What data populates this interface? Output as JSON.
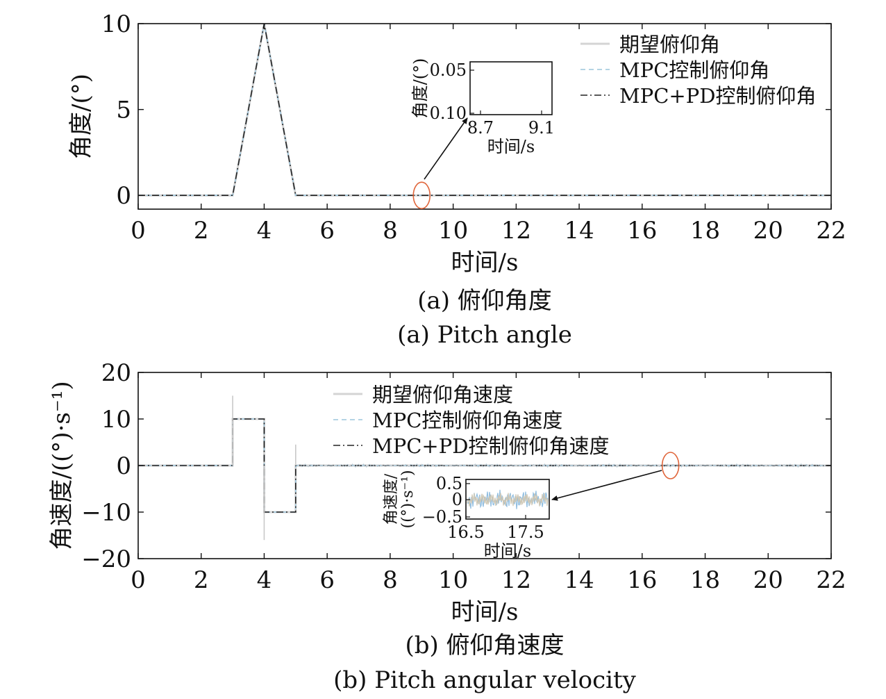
{
  "chart_data": [
    {
      "type": "line",
      "caption_zh": "(a) 俯仰角度",
      "caption_en": "(a) Pitch angle",
      "xlabel": "时间/s",
      "ylabel": "角度/(°)",
      "xlim": [
        0,
        22
      ],
      "ylim": [
        -0.8,
        10
      ],
      "xticks": [
        "0",
        "2",
        "4",
        "6",
        "8",
        "10",
        "12",
        "14",
        "16",
        "18",
        "20",
        "22"
      ],
      "yticks": [
        "0",
        "5",
        "10"
      ],
      "legend_position": "top-right",
      "series": [
        {
          "name": "期望俯仰角",
          "color": "#d4d4d4",
          "style": "solid",
          "x": [
            0,
            3,
            4,
            5,
            22
          ],
          "y": [
            0,
            0,
            10,
            0,
            0
          ]
        },
        {
          "name": "MPC控制俯仰角",
          "color": "#9cc5dc",
          "style": "dashed",
          "x": [
            0,
            3,
            4,
            5,
            22
          ],
          "y": [
            0,
            0,
            10,
            0,
            0
          ]
        },
        {
          "name": "MPC+PD控制俯仰角",
          "color": "#222222",
          "style": "dashdot",
          "x": [
            0,
            3,
            4,
            5,
            22
          ],
          "y": [
            0,
            0,
            10,
            0,
            0
          ]
        }
      ],
      "inset": {
        "xlabel": "时间/s",
        "ylabel": "角度/(°)",
        "xticks": [
          "8.7",
          "9.1"
        ],
        "yticks": [
          "0.05",
          "0.10"
        ],
        "zoom_center": [
          9.0,
          0
        ]
      },
      "highlight_color": "#e0653a"
    },
    {
      "type": "line",
      "caption_zh": "(b) 俯仰角速度",
      "caption_en": "(b) Pitch angular velocity",
      "xlabel": "时间/s",
      "ylabel": "角速度/((°)·s⁻¹)",
      "xlim": [
        0,
        22
      ],
      "ylim": [
        -20,
        20
      ],
      "xticks": [
        "0",
        "2",
        "4",
        "6",
        "8",
        "10",
        "12",
        "14",
        "16",
        "18",
        "20",
        "22"
      ],
      "yticks": [
        "20",
        "10",
        "0",
        "−10",
        "−20"
      ],
      "legend_position": "top-center",
      "series": [
        {
          "name": "期望俯仰角速度",
          "color": "#d4d4d4",
          "style": "solid",
          "x": [
            0,
            3,
            3,
            4,
            4,
            5,
            5,
            22
          ],
          "y": [
            0,
            0,
            10,
            10,
            -10,
            -10,
            0,
            0
          ]
        },
        {
          "name": "MPC控制俯仰角速度",
          "color": "#9cc5dc",
          "style": "dashed",
          "x": [
            0,
            3,
            3,
            4,
            4,
            5,
            5,
            22
          ],
          "y": [
            0,
            0,
            10,
            10,
            -10,
            -10,
            0,
            0
          ]
        },
        {
          "name": "MPC+PD控制俯仰角速度",
          "color": "#222222",
          "style": "dashdot",
          "x": [
            0,
            3,
            3,
            4,
            4,
            5,
            5,
            22
          ],
          "y": [
            0,
            0,
            10,
            10,
            -10,
            -10,
            0,
            0
          ]
        }
      ],
      "spikes": [
        {
          "x": 3,
          "y": 15
        },
        {
          "x": 4,
          "y": -16
        },
        {
          "x": 5,
          "y": 4.5
        }
      ],
      "inset": {
        "xlabel": "时间/s",
        "ylabel_line1": "角速度/",
        "ylabel_line2": "((°)·s⁻¹)",
        "xticks": [
          "16.5",
          "17.5"
        ],
        "yticks": [
          "0.5",
          "0",
          "−0.5"
        ],
        "zoom_center": [
          16.9,
          0
        ]
      },
      "highlight_color": "#e0653a"
    }
  ]
}
